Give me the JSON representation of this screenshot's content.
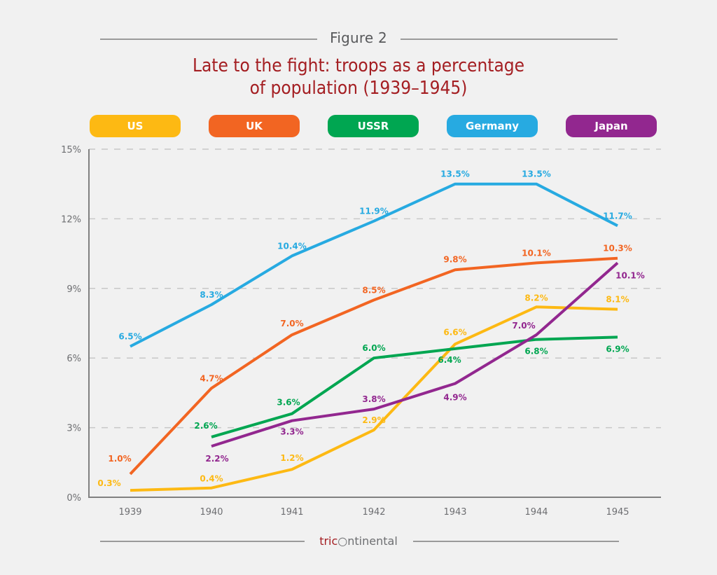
{
  "header": {
    "figure_label": "Figure 2",
    "title_line1": "Late to the fight: troops as a percentage",
    "title_line2": "of population (1939–1945)"
  },
  "footer": {
    "logo_part1": "tric",
    "logo_part2": "ntinental",
    "logo_full": "tricontinental"
  },
  "chart_data": {
    "type": "line",
    "title": "Late to the fight: troops as a percentage of population (1939–1945)",
    "xlabel": "",
    "ylabel": "",
    "x": [
      "1939",
      "1940",
      "1941",
      "1942",
      "1943",
      "1944",
      "1945"
    ],
    "ylim": [
      0,
      15
    ],
    "yticks": [
      0,
      3,
      6,
      9,
      12,
      15
    ],
    "ytick_labels": [
      "0%",
      "3%",
      "6%",
      "9%",
      "12%",
      "15%"
    ],
    "grid": "horizontal dashed",
    "legend_position": "top",
    "series": [
      {
        "name": "US",
        "color": "#fdb913",
        "values": [
          0.3,
          0.4,
          1.2,
          2.9,
          6.6,
          8.2,
          8.1
        ],
        "labels": [
          "0.3%",
          "0.4%",
          "1.2%",
          "2.9%",
          "6.6%",
          "8.2%",
          "8.1%"
        ]
      },
      {
        "name": "UK",
        "color": "#f26522",
        "values": [
          1.0,
          4.7,
          7.0,
          8.5,
          9.8,
          10.1,
          10.3
        ],
        "labels": [
          "1.0%",
          "4.7%",
          "7.0%",
          "8.5%",
          "9.8%",
          "10.1%",
          "10.3%"
        ]
      },
      {
        "name": "USSR",
        "color": "#00a651",
        "values": [
          null,
          2.6,
          3.6,
          6.0,
          6.4,
          6.8,
          6.9
        ],
        "labels": [
          null,
          "2.6%",
          "3.6%",
          "6.0%",
          "6.4%",
          "6.8%",
          "6.9%"
        ]
      },
      {
        "name": "Germany",
        "color": "#27aae1",
        "values": [
          6.5,
          8.3,
          10.4,
          11.9,
          13.5,
          13.5,
          11.7
        ],
        "labels": [
          "6.5%",
          "8.3%",
          "10.4%",
          "11.9%",
          "13.5%",
          "13.5%",
          "11.7%"
        ]
      },
      {
        "name": "Japan",
        "color": "#92278f",
        "values": [
          null,
          2.2,
          3.3,
          3.8,
          4.9,
          7.0,
          10.1
        ],
        "labels": [
          null,
          "2.2%",
          "3.3%",
          "3.8%",
          "4.9%",
          "7.0%",
          "10.1%"
        ]
      }
    ]
  }
}
